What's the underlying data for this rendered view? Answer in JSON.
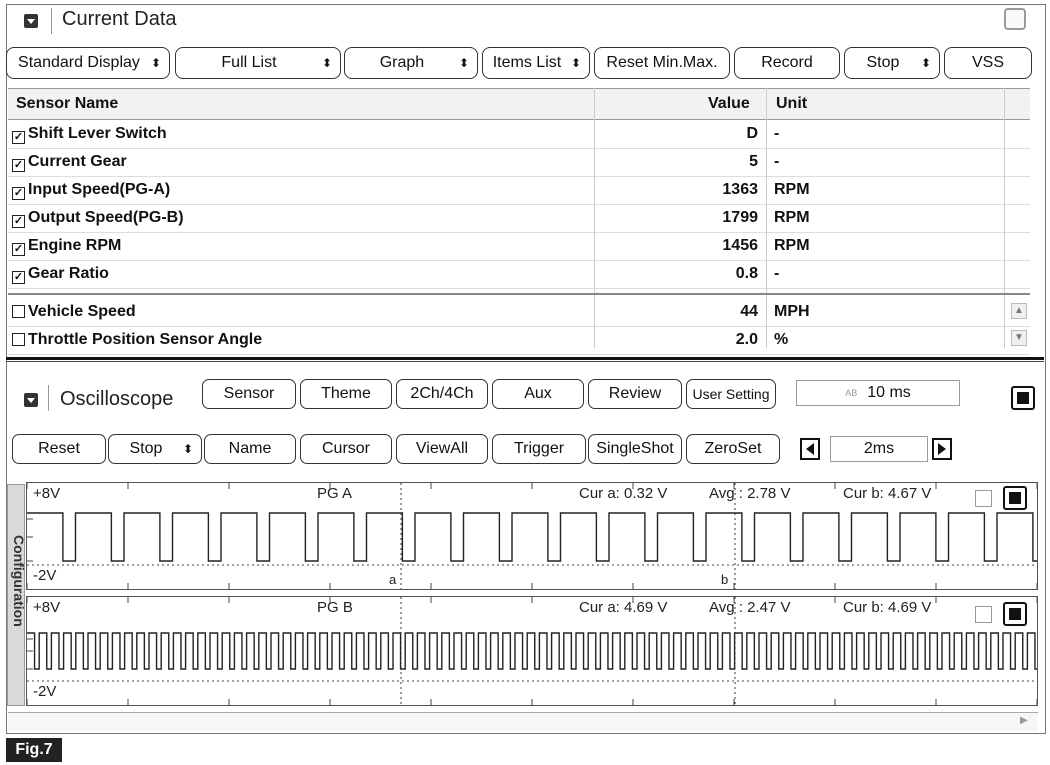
{
  "current_data": {
    "title": "Current Data",
    "toolbar": [
      {
        "label": "Standard Display",
        "dropdown": true
      },
      {
        "label": "Full List",
        "dropdown": true
      },
      {
        "label": "Graph",
        "dropdown": true
      },
      {
        "label": "Items List",
        "dropdown": true
      },
      {
        "label": "Reset Min.Max.",
        "dropdown": false
      },
      {
        "label": "Record",
        "dropdown": false
      },
      {
        "label": "Stop",
        "dropdown": true
      },
      {
        "label": "VSS",
        "dropdown": false
      }
    ],
    "table": {
      "headers": {
        "sensor": "Sensor Name",
        "value": "Value",
        "unit": "Unit"
      },
      "rows": [
        {
          "checked": true,
          "name": "Shift Lever Switch",
          "value": "D",
          "unit": "-"
        },
        {
          "checked": true,
          "name": "Current Gear",
          "value": "5",
          "unit": "-"
        },
        {
          "checked": true,
          "name": "Input Speed(PG-A)",
          "value": "1363",
          "unit": "RPM"
        },
        {
          "checked": true,
          "name": "Output Speed(PG-B)",
          "value": "1799",
          "unit": "RPM"
        },
        {
          "checked": true,
          "name": "Engine RPM",
          "value": "1456",
          "unit": "RPM"
        },
        {
          "checked": true,
          "name": "Gear Ratio",
          "value": "0.8",
          "unit": "-"
        },
        {
          "checked": false,
          "name": "Vehicle Speed",
          "value": "44",
          "unit": "MPH"
        },
        {
          "checked": false,
          "name": "Throttle Position Sensor Angle",
          "value": "2.0",
          "unit": "%"
        }
      ]
    }
  },
  "oscilloscope": {
    "title": "Oscilloscope",
    "toolbar1": [
      "Sensor",
      "Theme",
      "2Ch/4Ch",
      "Aux",
      "Review",
      "User Setting"
    ],
    "timebase": {
      "icon_text": "AB",
      "value": "10 ms"
    },
    "toolbar2": [
      {
        "label": "Reset",
        "dropdown": false
      },
      {
        "label": "Stop",
        "dropdown": true
      },
      {
        "label": "Name",
        "dropdown": false
      },
      {
        "label": "Cursor",
        "dropdown": false
      },
      {
        "label": "ViewAll",
        "dropdown": false
      },
      {
        "label": "Trigger",
        "dropdown": false
      },
      {
        "label": "SingleShot",
        "dropdown": false
      },
      {
        "label": "ZeroSet",
        "dropdown": false
      }
    ],
    "time_div": "2ms",
    "sidebar_label": "Configuration",
    "channels": [
      {
        "name": "PG A",
        "vmax": "+8V",
        "vmin": "-2V",
        "cur_a": "Cur a: 0.32 V",
        "avg": "Avg  : 2.78 V",
        "cur_b": "Cur b: 4.67 V",
        "cursor_a_label": "a",
        "cursor_b_label": "b"
      },
      {
        "name": "PG B",
        "vmax": "+8V",
        "vmin": "-2V",
        "cur_a": "Cur a: 4.69 V",
        "avg": "Avg  : 2.47 V",
        "cur_b": "Cur b: 4.69 V"
      }
    ]
  },
  "figure_label": "Fig.7"
}
